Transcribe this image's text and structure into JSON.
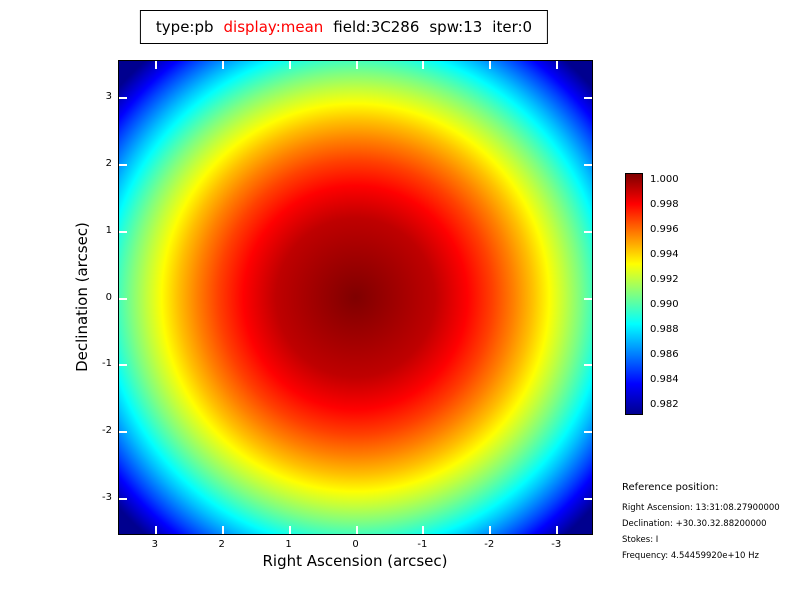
{
  "title": {
    "type_label": "type:pb",
    "display_label": "display:mean",
    "field_label": "field:3C286",
    "spw_label": "spw:13",
    "iter_label": "iter:0",
    "highlight_color": "#ff0000"
  },
  "reference": {
    "heading": "Reference position:",
    "lines": [
      "Right Ascension: 13:31:08.27900000",
      "Declination: +30.30.32.88200000",
      "Stokes: I",
      "Frequency: 4.54459920e+10 Hz"
    ]
  },
  "chart_data": {
    "type": "heatmap",
    "title": "type:pb display:mean field:3C286 spw:13 iter:0",
    "xlabel": "Right Ascension (arcsec)",
    "ylabel": "Declination (arcsec)",
    "xlim": [
      3.55,
      -3.55
    ],
    "ylim": [
      -3.55,
      3.55
    ],
    "x_ticks": [
      3,
      2,
      1,
      0,
      -1,
      -2,
      -3
    ],
    "y_ticks": [
      3,
      2,
      1,
      0,
      -1,
      -2,
      -3
    ],
    "grid": false,
    "colormap": "jet",
    "colorbar_position": "right",
    "colorbar_tick_labels": [
      "1.000",
      "0.998",
      "0.996",
      "0.994",
      "0.992",
      "0.990",
      "0.988",
      "0.986",
      "0.984",
      "0.982"
    ],
    "value_range": [
      0.98,
      1.0
    ],
    "pattern": "Circularly symmetric primary-beam response peaking at 1.000 at the field center (0,0), decreasing approximately quadratically with radius to ~0.978 at the field corners",
    "radial_profile": {
      "radius_arcsec": [
        0,
        0.5,
        1,
        1.5,
        2,
        2.5,
        3,
        3.55,
        4,
        4.5,
        5.02
      ],
      "value": [
        1.0,
        0.9998,
        0.9991,
        0.998,
        0.9965,
        0.9945,
        0.9921,
        0.989,
        0.986,
        0.9823,
        0.978
      ]
    }
  }
}
